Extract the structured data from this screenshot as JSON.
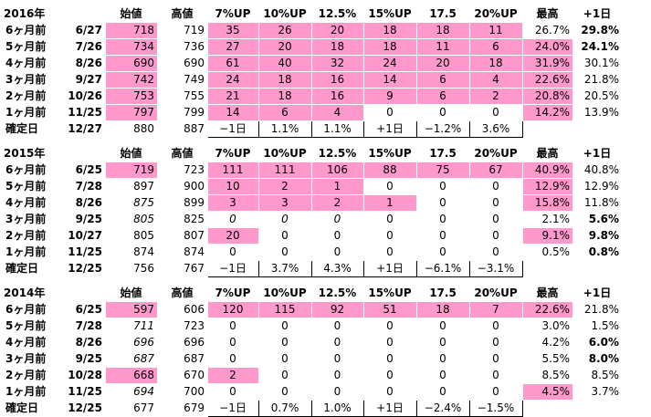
{
  "columns": [
    "",
    "始値",
    "高値",
    "7%UP",
    "10%UP",
    "12.5%",
    "15%UP",
    "17.5",
    "20%UP",
    "最高",
    "+1日"
  ],
  "tables": [
    {
      "year": "2016年",
      "rows": [
        {
          "label": "6ヶ月前",
          "date": "6/27",
          "open": "718",
          "high": "719",
          "u7": "35",
          "u10": "26",
          "u125": "20",
          "u15": "18",
          "u175": "18",
          "u20": "11",
          "max": "26.7%",
          "d1": "29.8%"
        },
        {
          "label": "5ヶ月前",
          "date": "7/26",
          "open": "734",
          "high": "736",
          "u7": "27",
          "u10": "20",
          "u125": "18",
          "u15": "18",
          "u175": "11",
          "u20": "6",
          "max": "24.0%",
          "d1": "24.1%"
        },
        {
          "label": "4ヶ月前",
          "date": "8/26",
          "open": "690",
          "high": "690",
          "u7": "61",
          "u10": "40",
          "u125": "32",
          "u15": "24",
          "u175": "20",
          "u20": "18",
          "max": "31.9%",
          "d1": "30.1%"
        },
        {
          "label": "3ヶ月前",
          "date": "9/27",
          "open": "742",
          "high": "749",
          "u7": "24",
          "u10": "18",
          "u125": "16",
          "u15": "14",
          "u175": "6",
          "u20": "4",
          "max": "22.6%",
          "d1": "21.8%"
        },
        {
          "label": "2ヶ月前",
          "date": "10/26",
          "open": "753",
          "high": "755",
          "u7": "21",
          "u10": "18",
          "u125": "16",
          "u15": "9",
          "u175": "6",
          "u20": "2",
          "max": "20.8%",
          "d1": "20.5%"
        },
        {
          "label": "1ヶ月前",
          "date": "11/25",
          "open": "797",
          "high": "799",
          "u7": "14",
          "u10": "6",
          "u125": "4",
          "u15": "0",
          "u175": "0",
          "u20": "0",
          "max": "14.2%",
          "d1": "13.9%"
        }
      ],
      "confirm": {
        "label": "確定日",
        "date": "12/27",
        "open": "880",
        "high": "887",
        "u7": "−1日",
        "u10": "1.1%",
        "u125": "1.1%",
        "u15": "+1日",
        "u175": "−1.2%",
        "u20": "3.6%"
      }
    },
    {
      "year": "2015年",
      "rows": [
        {
          "label": "6ヶ月前",
          "date": "6/25",
          "open": "719",
          "high": "723",
          "u7": "111",
          "u10": "111",
          "u125": "106",
          "u15": "88",
          "u175": "75",
          "u20": "67",
          "max": "40.9%",
          "d1": "40.8%"
        },
        {
          "label": "5ヶ月前",
          "date": "7/28",
          "open": "897",
          "high": "900",
          "u7": "10",
          "u10": "2",
          "u125": "1",
          "u15": "0",
          "u175": "0",
          "u20": "0",
          "max": "12.9%",
          "d1": "12.9%"
        },
        {
          "label": "4ヶ月前",
          "date": "8/26",
          "open": "875",
          "high": "899",
          "u7": "3",
          "u10": "3",
          "u125": "2",
          "u15": "1",
          "u175": "0",
          "u20": "0",
          "max": "15.8%",
          "d1": "11.8%"
        },
        {
          "label": "3ヶ月前",
          "date": "9/25",
          "open": "805",
          "high": "825",
          "u7": "0",
          "u10": "0",
          "u125": "0",
          "u15": "0",
          "u175": "0",
          "u20": "0",
          "max": "2.1%",
          "d1": "5.6%"
        },
        {
          "label": "2ヶ月前",
          "date": "10/27",
          "open": "805",
          "high": "807",
          "u7": "20",
          "u10": "0",
          "u125": "0",
          "u15": "0",
          "u175": "0",
          "u20": "0",
          "max": "9.1%",
          "d1": "9.8%"
        },
        {
          "label": "1ヶ月前",
          "date": "11/25",
          "open": "874",
          "high": "874",
          "u7": "0",
          "u10": "0",
          "u125": "0",
          "u15": "0",
          "u175": "0",
          "u20": "0",
          "max": "0.5%",
          "d1": "0.8%"
        }
      ],
      "confirm": {
        "label": "確定日",
        "date": "12/25",
        "open": "756",
        "high": "767",
        "u7": "−1日",
        "u10": "3.7%",
        "u125": "4.3%",
        "u15": "+1日",
        "u175": "−6.1%",
        "u20": "−3.1%"
      }
    },
    {
      "year": "2014年",
      "rows": [
        {
          "label": "6ヶ月前",
          "date": "6/25",
          "open": "597",
          "high": "606",
          "u7": "120",
          "u10": "115",
          "u125": "92",
          "u15": "51",
          "u175": "18",
          "u20": "7",
          "max": "22.6%",
          "d1": "21.8%"
        },
        {
          "label": "5ヶ月前",
          "date": "7/28",
          "open": "711",
          "high": "723",
          "u7": "0",
          "u10": "0",
          "u125": "0",
          "u15": "0",
          "u175": "0",
          "u20": "0",
          "max": "3.0%",
          "d1": "1.5%"
        },
        {
          "label": "4ヶ月前",
          "date": "8/26",
          "open": "696",
          "high": "696",
          "u7": "0",
          "u10": "0",
          "u125": "0",
          "u15": "0",
          "u175": "0",
          "u20": "0",
          "max": "4.2%",
          "d1": "6.0%"
        },
        {
          "label": "3ヶ月前",
          "date": "9/25",
          "open": "687",
          "high": "687",
          "u7": "0",
          "u10": "0",
          "u125": "0",
          "u15": "0",
          "u175": "0",
          "u20": "0",
          "max": "5.5%",
          "d1": "8.0%"
        },
        {
          "label": "2ヶ月前",
          "date": "10/28",
          "open": "668",
          "high": "670",
          "u7": "2",
          "u10": "0",
          "u125": "0",
          "u15": "0",
          "u175": "0",
          "u20": "0",
          "max": "8.5%",
          "d1": "8.5%"
        },
        {
          "label": "1ヶ月前",
          "date": "11/25",
          "open": "694",
          "high": "700",
          "u7": "0",
          "u10": "0",
          "u125": "0",
          "u15": "0",
          "u175": "0",
          "u20": "0",
          "max": "4.5%",
          "d1": "3.7%"
        }
      ],
      "confirm": {
        "label": "確定日",
        "date": "12/25",
        "open": "677",
        "high": "679",
        "u7": "−1日",
        "u10": "0.7%",
        "u125": "1.0%",
        "u15": "+1日",
        "u175": "−2.4%",
        "u20": "−1.5%"
      }
    }
  ],
  "colors": {
    "highlight": "#ff99cc",
    "white_text": "#ffffff",
    "gray_text": "#b2b2b2"
  }
}
